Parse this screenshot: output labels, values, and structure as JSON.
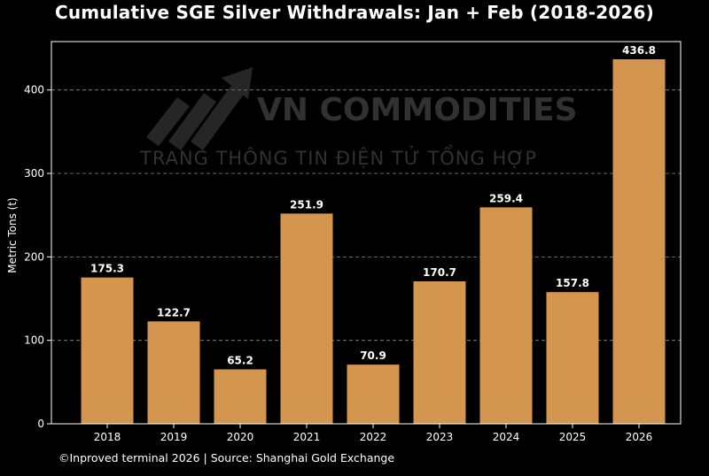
{
  "chart_data": {
    "type": "bar",
    "title": "Cumulative SGE Silver Withdrawals: Jan + Feb (2018-2026)",
    "ylabel": "Metric Tons (t)",
    "xlabel": "",
    "categories": [
      "2018",
      "2019",
      "2020",
      "2021",
      "2022",
      "2023",
      "2024",
      "2025",
      "2026"
    ],
    "values": [
      175.3,
      122.7,
      65.2,
      251.9,
      70.9,
      170.7,
      259.4,
      157.8,
      436.8
    ],
    "value_labels": [
      "175.3",
      "122.7",
      "65.2",
      "251.9",
      "70.9",
      "170.7",
      "259.4",
      "157.8",
      "436.8"
    ],
    "ylim": [
      0,
      458
    ],
    "yticks": [
      0,
      100,
      200,
      300,
      400
    ],
    "grid": "horizontal dashed",
    "bar_color": "#d4954f",
    "background": "#000000"
  },
  "watermark": {
    "brand": "VN COMMODITIES",
    "tagline": "TRANG THÔNG TIN ĐIỆN TỬ TỔNG HỢP"
  },
  "footer": "©Inproved terminal 2026 | Source: Shanghai Gold Exchange"
}
